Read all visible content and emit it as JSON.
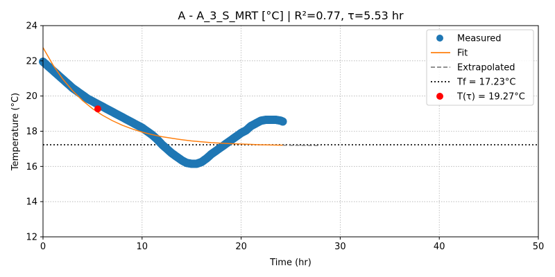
{
  "chart_data": {
    "type": "line",
    "title": "A - A_3_S_MRT  [°C] | R²=0.77, τ=5.53 hr",
    "xlabel": "Time (hr)",
    "ylabel": "Temperature (°C)",
    "xlim": [
      0,
      50
    ],
    "ylim": [
      12,
      24
    ],
    "xticks": [
      0,
      10,
      20,
      30,
      40,
      50
    ],
    "yticks": [
      12,
      14,
      16,
      18,
      20,
      22,
      24
    ],
    "grid": true,
    "legend_position": "top-right",
    "series": [
      {
        "name": "Measured",
        "kind": "scatter",
        "color": "#1f77b4",
        "x": [
          0.0,
          0.5,
          1.0,
          1.5,
          2.0,
          2.5,
          3.0,
          3.5,
          4.0,
          4.5,
          5.0,
          5.5,
          6.0,
          6.5,
          7.0,
          7.5,
          8.0,
          8.5,
          9.0,
          9.5,
          10.0,
          10.5,
          11.0,
          11.5,
          12.0,
          12.5,
          13.0,
          13.5,
          14.0,
          14.5,
          15.0,
          15.5,
          16.0,
          16.5,
          17.0,
          17.5,
          18.0,
          18.5,
          19.0,
          19.5,
          20.0,
          20.5,
          21.0,
          21.5,
          22.0,
          22.5,
          23.0,
          23.5,
          24.0,
          24.2
        ],
        "y": [
          21.95,
          21.7,
          21.45,
          21.2,
          20.95,
          20.7,
          20.45,
          20.25,
          20.05,
          19.85,
          19.7,
          19.55,
          19.4,
          19.25,
          19.1,
          18.95,
          18.8,
          18.65,
          18.5,
          18.35,
          18.2,
          18.0,
          17.8,
          17.55,
          17.25,
          17.0,
          16.75,
          16.55,
          16.35,
          16.2,
          16.15,
          16.15,
          16.25,
          16.45,
          16.7,
          16.9,
          17.1,
          17.3,
          17.5,
          17.7,
          17.9,
          18.05,
          18.3,
          18.45,
          18.6,
          18.65,
          18.65,
          18.65,
          18.6,
          18.55
        ]
      },
      {
        "name": "Fit",
        "kind": "line",
        "color": "#ff7f0e",
        "x": [
          0,
          1,
          2,
          3,
          4,
          5,
          6,
          7,
          8,
          9,
          10,
          11,
          12,
          13,
          14,
          15,
          16,
          17,
          18,
          19,
          20,
          21,
          22,
          23,
          24,
          24.2
        ],
        "y": [
          22.75,
          21.77,
          20.96,
          20.29,
          19.74,
          19.28,
          18.91,
          18.6,
          18.34,
          18.13,
          17.95,
          17.81,
          17.69,
          17.6,
          17.52,
          17.45,
          17.4,
          17.35,
          17.32,
          17.29,
          17.27,
          17.25,
          17.23,
          17.22,
          17.21,
          17.21
        ]
      },
      {
        "name": "Extrapolated",
        "kind": "dashed",
        "color": "#808080",
        "x": [
          24.2,
          25,
          26,
          27,
          28
        ],
        "y": [
          17.21,
          17.2,
          17.2,
          17.19,
          17.19
        ]
      },
      {
        "name": "Tf = 17.23°C",
        "kind": "hline",
        "color": "#000000",
        "y": 17.23
      },
      {
        "name": "T(τ) = 19.27°C",
        "kind": "point",
        "color": "#ff0000",
        "x": 5.53,
        "y": 19.27
      }
    ]
  }
}
